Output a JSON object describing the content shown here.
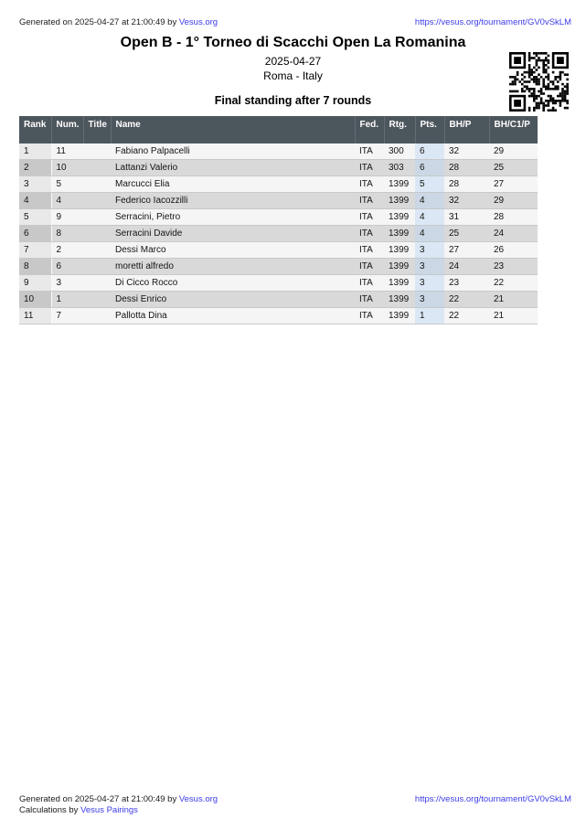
{
  "top_bar": {
    "generated_prefix": "Generated on 2025-04-27 at 21:00:49 by ",
    "generated_link": "Vesus.org",
    "url": "https://vesus.org/tournament/GV0vSkLM"
  },
  "header": {
    "title": "Open B - 1° Torneo di Scacchi Open La Romanina",
    "date": "2025-04-27",
    "location": "Roma - Italy",
    "subtitle": "Final standing after 7 rounds",
    "qr_icon": "qr-code"
  },
  "table": {
    "columns": [
      "Rank",
      "Num.",
      "Title",
      "Name",
      "Fed.",
      "Rtg.",
      "Pts.",
      "BH/P",
      "BH/C1/P"
    ],
    "rows": [
      {
        "rank": "1",
        "num": "11",
        "title": "",
        "name": "Fabiano Palpacelli",
        "fed": "ITA",
        "rtg": "300",
        "pts": "6",
        "bhp": "32",
        "bhc1p": "29"
      },
      {
        "rank": "2",
        "num": "10",
        "title": "",
        "name": "Lattanzi Valerio",
        "fed": "ITA",
        "rtg": "303",
        "pts": "6",
        "bhp": "28",
        "bhc1p": "25"
      },
      {
        "rank": "3",
        "num": "5",
        "title": "",
        "name": "Marcucci Elia",
        "fed": "ITA",
        "rtg": "1399",
        "pts": "5",
        "bhp": "28",
        "bhc1p": "27"
      },
      {
        "rank": "4",
        "num": "4",
        "title": "",
        "name": "Federico Iacozzilli",
        "fed": "ITA",
        "rtg": "1399",
        "pts": "4",
        "bhp": "32",
        "bhc1p": "29"
      },
      {
        "rank": "5",
        "num": "9",
        "title": "",
        "name": "Serracini, Pietro",
        "fed": "ITA",
        "rtg": "1399",
        "pts": "4",
        "bhp": "31",
        "bhc1p": "28"
      },
      {
        "rank": "6",
        "num": "8",
        "title": "",
        "name": "Serracini Davide",
        "fed": "ITA",
        "rtg": "1399",
        "pts": "4",
        "bhp": "25",
        "bhc1p": "24"
      },
      {
        "rank": "7",
        "num": "2",
        "title": "",
        "name": "Dessi Marco",
        "fed": "ITA",
        "rtg": "1399",
        "pts": "3",
        "bhp": "27",
        "bhc1p": "26"
      },
      {
        "rank": "8",
        "num": "6",
        "title": "",
        "name": "moretti alfredo",
        "fed": "ITA",
        "rtg": "1399",
        "pts": "3",
        "bhp": "24",
        "bhc1p": "23"
      },
      {
        "rank": "9",
        "num": "3",
        "title": "",
        "name": "Di Cicco Rocco",
        "fed": "ITA",
        "rtg": "1399",
        "pts": "3",
        "bhp": "23",
        "bhc1p": "22"
      },
      {
        "rank": "10",
        "num": "1",
        "title": "",
        "name": "Dessi Enrico",
        "fed": "ITA",
        "rtg": "1399",
        "pts": "3",
        "bhp": "22",
        "bhc1p": "21"
      },
      {
        "rank": "11",
        "num": "7",
        "title": "",
        "name": "Pallotta Dina",
        "fed": "ITA",
        "rtg": "1399",
        "pts": "1",
        "bhp": "22",
        "bhc1p": "21"
      }
    ]
  },
  "footer": {
    "generated_prefix": "Generated on 2025-04-27 at 21:00:49 by ",
    "generated_link": "Vesus.org",
    "calc_prefix": "Calculations by ",
    "calc_link": "Vesus Pairings",
    "url": "https://vesus.org/tournament/GV0vSkLM"
  },
  "colors": {
    "link_blue": "#3c3ce8",
    "table_header_bg": "#4c565d",
    "row_odd": "#f5f5f5",
    "row_even": "#d9d9d9",
    "rank_odd": "#e9e9e9",
    "rank_even": "#c8c8c8",
    "pts_highlight_odd": "#dbe7f4",
    "pts_highlight_even": "#cbd7e4"
  }
}
